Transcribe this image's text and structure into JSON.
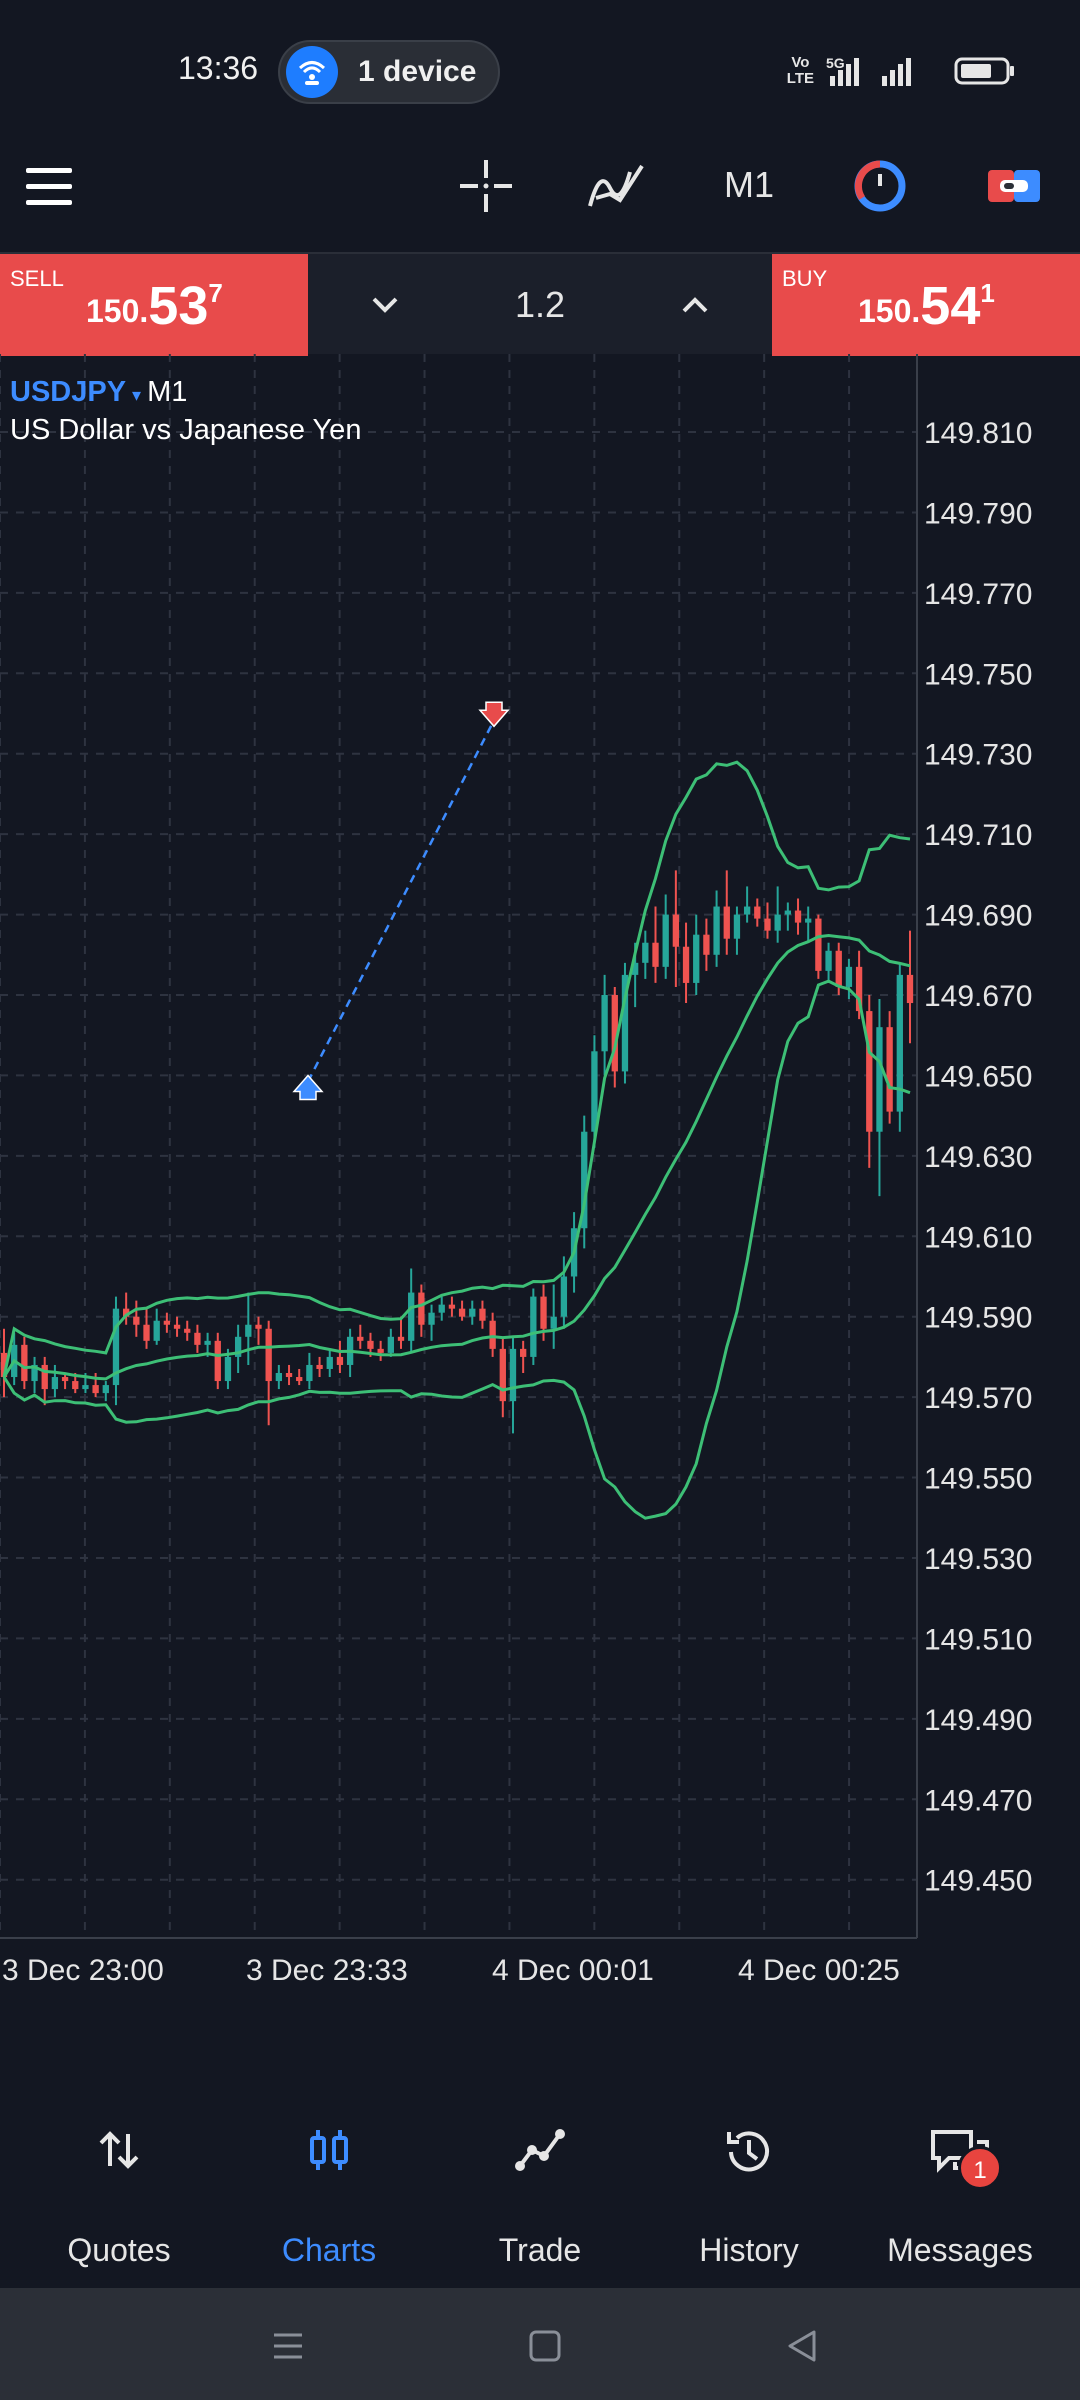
{
  "status_bar": {
    "time": "13:36",
    "device_pill": "1 device",
    "signal_label_1": "Vo",
    "signal_label_2": "LTE",
    "network": "5G"
  },
  "toolbar": {
    "timeframe": "M1",
    "icons": [
      "menu-icon",
      "crosshair-icon",
      "indicators-icon",
      "timeframe",
      "timer-icon",
      "one-click-trading-icon"
    ]
  },
  "trade": {
    "sell_label": "SELL",
    "sell_price_small": "150.",
    "sell_price_big": "53",
    "sell_price_sup": "7",
    "buy_label": "BUY",
    "buy_price_small": "150.",
    "buy_price_big": "54",
    "buy_price_sup": "1",
    "volume": "1.2",
    "colors": {
      "sell": "#e84b4b",
      "buy": "#e84b4b"
    }
  },
  "chart": {
    "symbol": "USDJPY",
    "caret": "▾",
    "timeframe": "M1",
    "description": "US Dollar vs Japanese Yen"
  },
  "chart_data": {
    "type": "candlestick",
    "symbol": "USDJPY",
    "timeframe": "M1",
    "y_ticks": [
      "149.810",
      "149.790",
      "149.770",
      "149.750",
      "149.730",
      "149.710",
      "149.690",
      "149.670",
      "149.650",
      "149.630",
      "149.610",
      "149.590",
      "149.570",
      "149.550",
      "149.530",
      "149.510",
      "149.490",
      "149.470",
      "149.450"
    ],
    "x_ticks": [
      "3 Dec 23:00",
      "3 Dec 23:33",
      "4 Dec 00:01",
      "4 Dec 00:25"
    ],
    "ylim": [
      149.4355,
      149.8294
    ],
    "colors": {
      "bull": "#26a69a",
      "bear": "#ef5350",
      "bands": "#3dbf76",
      "grid": "#2e3340",
      "trade_line": "#3d8cff"
    },
    "candles": [
      [
        149.581,
        149.587,
        149.57,
        149.575
      ],
      [
        149.575,
        149.586,
        149.573,
        149.583
      ],
      [
        149.583,
        149.585,
        149.572,
        149.574
      ],
      [
        149.574,
        149.58,
        149.571,
        149.578
      ],
      [
        149.578,
        149.58,
        149.568,
        149.572
      ],
      [
        149.572,
        149.578,
        149.57,
        149.575
      ],
      [
        149.575,
        149.576,
        149.572,
        149.574
      ],
      [
        149.574,
        149.576,
        149.571,
        149.572
      ],
      [
        149.572,
        149.576,
        149.571,
        149.573
      ],
      [
        149.573,
        149.576,
        149.57,
        149.571
      ],
      [
        149.571,
        149.574,
        149.569,
        149.573
      ],
      [
        149.573,
        149.595,
        149.568,
        149.592
      ],
      [
        149.592,
        149.596,
        149.588,
        149.59
      ],
      [
        149.59,
        149.594,
        149.585,
        149.588
      ],
      [
        149.588,
        149.592,
        149.582,
        149.584
      ],
      [
        149.584,
        149.592,
        149.583,
        149.589
      ],
      [
        149.589,
        149.591,
        149.586,
        149.588
      ],
      [
        149.588,
        149.59,
        149.585,
        149.587
      ],
      [
        149.587,
        149.589,
        149.584,
        149.586
      ],
      [
        149.586,
        149.588,
        149.581,
        149.583
      ],
      [
        149.583,
        149.586,
        149.58,
        149.584
      ],
      [
        149.584,
        149.586,
        149.572,
        149.574
      ],
      [
        149.574,
        149.582,
        149.572,
        149.58
      ],
      [
        149.58,
        149.588,
        149.576,
        149.585
      ],
      [
        149.585,
        149.596,
        149.578,
        149.588
      ],
      [
        149.588,
        149.59,
        149.583,
        149.587
      ],
      [
        149.587,
        149.589,
        149.563,
        149.574
      ],
      [
        149.574,
        149.578,
        149.572,
        149.576
      ],
      [
        149.576,
        149.578,
        149.573,
        149.575
      ],
      [
        149.575,
        149.577,
        149.573,
        149.574
      ],
      [
        149.574,
        149.581,
        149.572,
        149.578
      ],
      [
        149.578,
        149.58,
        149.575,
        149.577
      ],
      [
        149.577,
        149.582,
        149.575,
        149.58
      ],
      [
        149.58,
        149.584,
        149.576,
        149.578
      ],
      [
        149.578,
        149.587,
        149.575,
        149.585
      ],
      [
        149.585,
        149.588,
        149.582,
        149.584
      ],
      [
        149.584,
        149.586,
        149.58,
        149.582
      ],
      [
        149.582,
        149.584,
        149.579,
        149.581
      ],
      [
        149.581,
        149.587,
        149.58,
        149.585
      ],
      [
        149.585,
        149.59,
        149.582,
        149.584
      ],
      [
        149.584,
        149.602,
        149.581,
        149.596
      ],
      [
        149.596,
        149.598,
        149.585,
        149.588
      ],
      [
        149.588,
        149.593,
        149.584,
        149.591
      ],
      [
        149.591,
        149.595,
        149.589,
        149.593
      ],
      [
        149.593,
        149.595,
        149.59,
        149.592
      ],
      [
        149.592,
        149.594,
        149.589,
        149.59
      ],
      [
        149.59,
        149.594,
        149.588,
        149.592
      ],
      [
        149.592,
        149.594,
        149.587,
        149.589
      ],
      [
        149.589,
        149.591,
        149.58,
        149.582
      ],
      [
        149.582,
        149.585,
        149.565,
        149.569
      ],
      [
        149.569,
        149.585,
        149.561,
        149.582
      ],
      [
        149.582,
        149.584,
        149.576,
        149.58
      ],
      [
        149.58,
        149.597,
        149.578,
        149.595
      ],
      [
        149.595,
        149.598,
        149.584,
        149.587
      ],
      [
        149.587,
        149.598,
        149.582,
        149.59
      ],
      [
        149.59,
        149.605,
        149.587,
        149.6
      ],
      [
        149.6,
        149.616,
        149.596,
        149.612
      ],
      [
        149.612,
        149.64,
        149.607,
        149.636
      ],
      [
        149.636,
        149.66,
        149.632,
        149.656
      ],
      [
        149.656,
        149.675,
        149.65,
        149.67
      ],
      [
        149.67,
        149.672,
        149.647,
        149.651
      ],
      [
        149.651,
        149.678,
        149.648,
        149.675
      ],
      [
        149.675,
        149.683,
        149.667,
        149.678
      ],
      [
        149.678,
        149.686,
        149.674,
        149.683
      ],
      [
        149.683,
        149.692,
        149.673,
        149.677
      ],
      [
        149.677,
        149.695,
        149.674,
        149.69
      ],
      [
        149.69,
        149.701,
        149.672,
        149.682
      ],
      [
        149.682,
        149.688,
        149.668,
        149.673
      ],
      [
        149.673,
        149.69,
        149.67,
        149.685
      ],
      [
        149.685,
        149.689,
        149.676,
        149.68
      ],
      [
        149.68,
        149.696,
        149.677,
        149.692
      ],
      [
        149.692,
        149.701,
        149.68,
        149.684
      ],
      [
        149.684,
        149.692,
        149.68,
        149.69
      ],
      [
        149.69,
        149.697,
        149.688,
        149.692
      ],
      [
        149.692,
        149.694,
        149.687,
        149.689
      ],
      [
        149.689,
        149.693,
        149.684,
        149.686
      ],
      [
        149.686,
        149.697,
        149.683,
        149.69
      ],
      [
        149.69,
        149.693,
        149.686,
        149.691
      ],
      [
        149.691,
        149.694,
        149.685,
        149.688
      ],
      [
        149.688,
        149.692,
        149.683,
        149.689
      ],
      [
        149.689,
        149.69,
        149.674,
        149.676
      ],
      [
        149.676,
        149.683,
        149.673,
        149.681
      ],
      [
        149.681,
        149.683,
        149.67,
        149.672
      ],
      [
        149.672,
        149.679,
        149.669,
        149.677
      ],
      [
        149.677,
        149.681,
        149.664,
        149.666
      ],
      [
        149.666,
        149.67,
        149.627,
        149.636
      ],
      [
        149.636,
        149.669,
        149.62,
        149.662
      ],
      [
        149.662,
        149.666,
        149.638,
        149.641
      ],
      [
        149.641,
        149.678,
        149.636,
        149.675
      ],
      [
        149.675,
        149.686,
        149.658,
        149.668
      ]
    ],
    "trade_markers": [
      {
        "type": "buy",
        "price": 149.6465
      },
      {
        "type": "sell",
        "price": 149.7403
      }
    ]
  },
  "bottom_nav": {
    "items": [
      {
        "label": "Quotes",
        "icon": "quotes-arrows-icon"
      },
      {
        "label": "Charts",
        "icon": "charts-candles-icon"
      },
      {
        "label": "Trade",
        "icon": "trade-line-icon"
      },
      {
        "label": "History",
        "icon": "history-clock-icon"
      },
      {
        "label": "Messages",
        "icon": "messages-chat-icon"
      }
    ],
    "active": "Charts",
    "messages_badge": "1"
  }
}
